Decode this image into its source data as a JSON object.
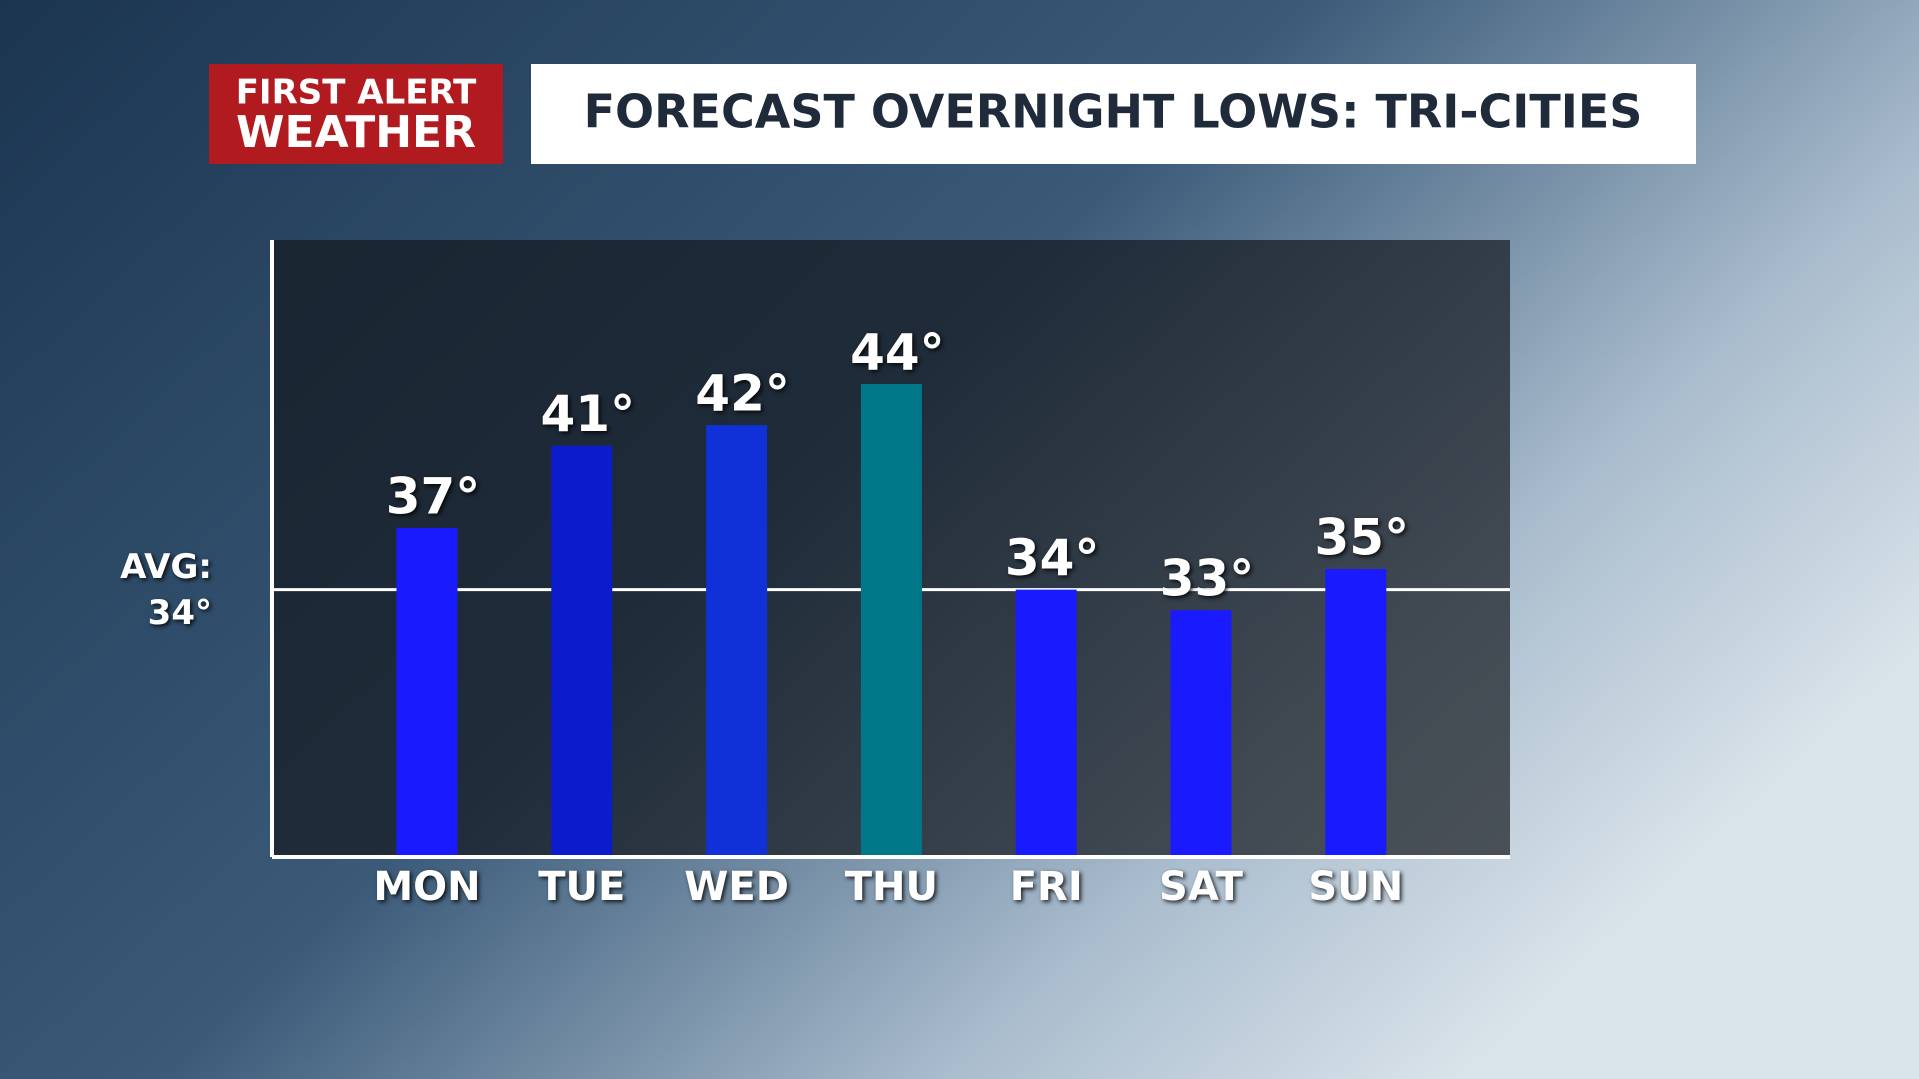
{
  "logo": {
    "line1": "FIRST ALERT",
    "line2": "WEATHER"
  },
  "chart_data": {
    "type": "bar",
    "title": "FORECAST OVERNIGHT LOWS: TRI-CITIES",
    "categories": [
      "MON",
      "TUE",
      "WED",
      "THU",
      "FRI",
      "SAT",
      "SUN"
    ],
    "values": [
      37,
      41,
      42,
      44,
      34,
      33,
      35
    ],
    "value_labels": [
      "37°",
      "41°",
      "42°",
      "44°",
      "34°",
      "33°",
      "35°"
    ],
    "colors": [
      "#1a1aff",
      "#0c1ccc",
      "#1030d8",
      "#00788a",
      "#1a1aff",
      "#1a1aff",
      "#1a1aff"
    ],
    "ylim": [
      21,
      51
    ],
    "avg_line": {
      "label": "AVG:",
      "value": 34,
      "value_label": "34°"
    }
  }
}
